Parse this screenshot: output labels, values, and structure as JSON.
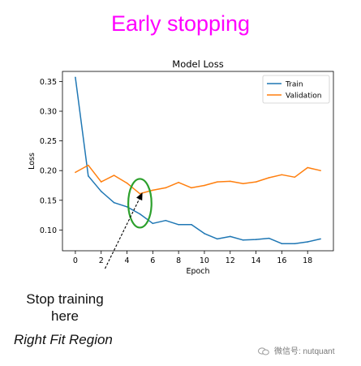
{
  "heading": "Early stopping",
  "annotations": {
    "stop_training": "Stop training\nhere",
    "right_fit": "Right Fit Region"
  },
  "watermark": "微信号: nutquant",
  "colors": {
    "heading": "#ff00ff",
    "train": "#1f77b4",
    "validation": "#ff7f0e",
    "highlight_ellipse": "#2ca02c"
  },
  "chart_data": {
    "type": "line",
    "title": "Model Loss",
    "xlabel": "Epoch",
    "ylabel": "Loss",
    "x": [
      0,
      1,
      2,
      3,
      4,
      5,
      6,
      7,
      8,
      9,
      10,
      11,
      12,
      13,
      14,
      15,
      16,
      17,
      18,
      19
    ],
    "series": [
      {
        "name": "Train",
        "color": "#1f77b4",
        "values": [
          0.357,
          0.191,
          0.165,
          0.146,
          0.139,
          0.127,
          0.111,
          0.116,
          0.109,
          0.109,
          0.094,
          0.085,
          0.089,
          0.083,
          0.084,
          0.086,
          0.077,
          0.077,
          0.08,
          0.085
        ]
      },
      {
        "name": "Validation",
        "color": "#ff7f0e",
        "values": [
          0.197,
          0.209,
          0.181,
          0.192,
          0.179,
          0.161,
          0.167,
          0.171,
          0.18,
          0.171,
          0.175,
          0.181,
          0.182,
          0.178,
          0.181,
          0.188,
          0.193,
          0.189,
          0.205,
          0.2
        ]
      }
    ],
    "xticks": [
      "0",
      "2",
      "4",
      "6",
      "8",
      "10",
      "12",
      "14",
      "16",
      "18"
    ],
    "yticks": [
      "0.10",
      "0.15",
      "0.20",
      "0.25",
      "0.30",
      "0.35"
    ],
    "xlim": [
      -1,
      20
    ],
    "ylim": [
      0.065,
      0.367
    ],
    "legend_position": "top-right",
    "grid": false,
    "highlight": {
      "shape": "ellipse",
      "x": 5,
      "y": 0.145,
      "rx_epochs": 0.9,
      "ry_loss": 0.041
    },
    "arrow": {
      "from": [
        2.3,
        0.035
      ],
      "to": [
        5.2,
        0.163
      ]
    }
  }
}
